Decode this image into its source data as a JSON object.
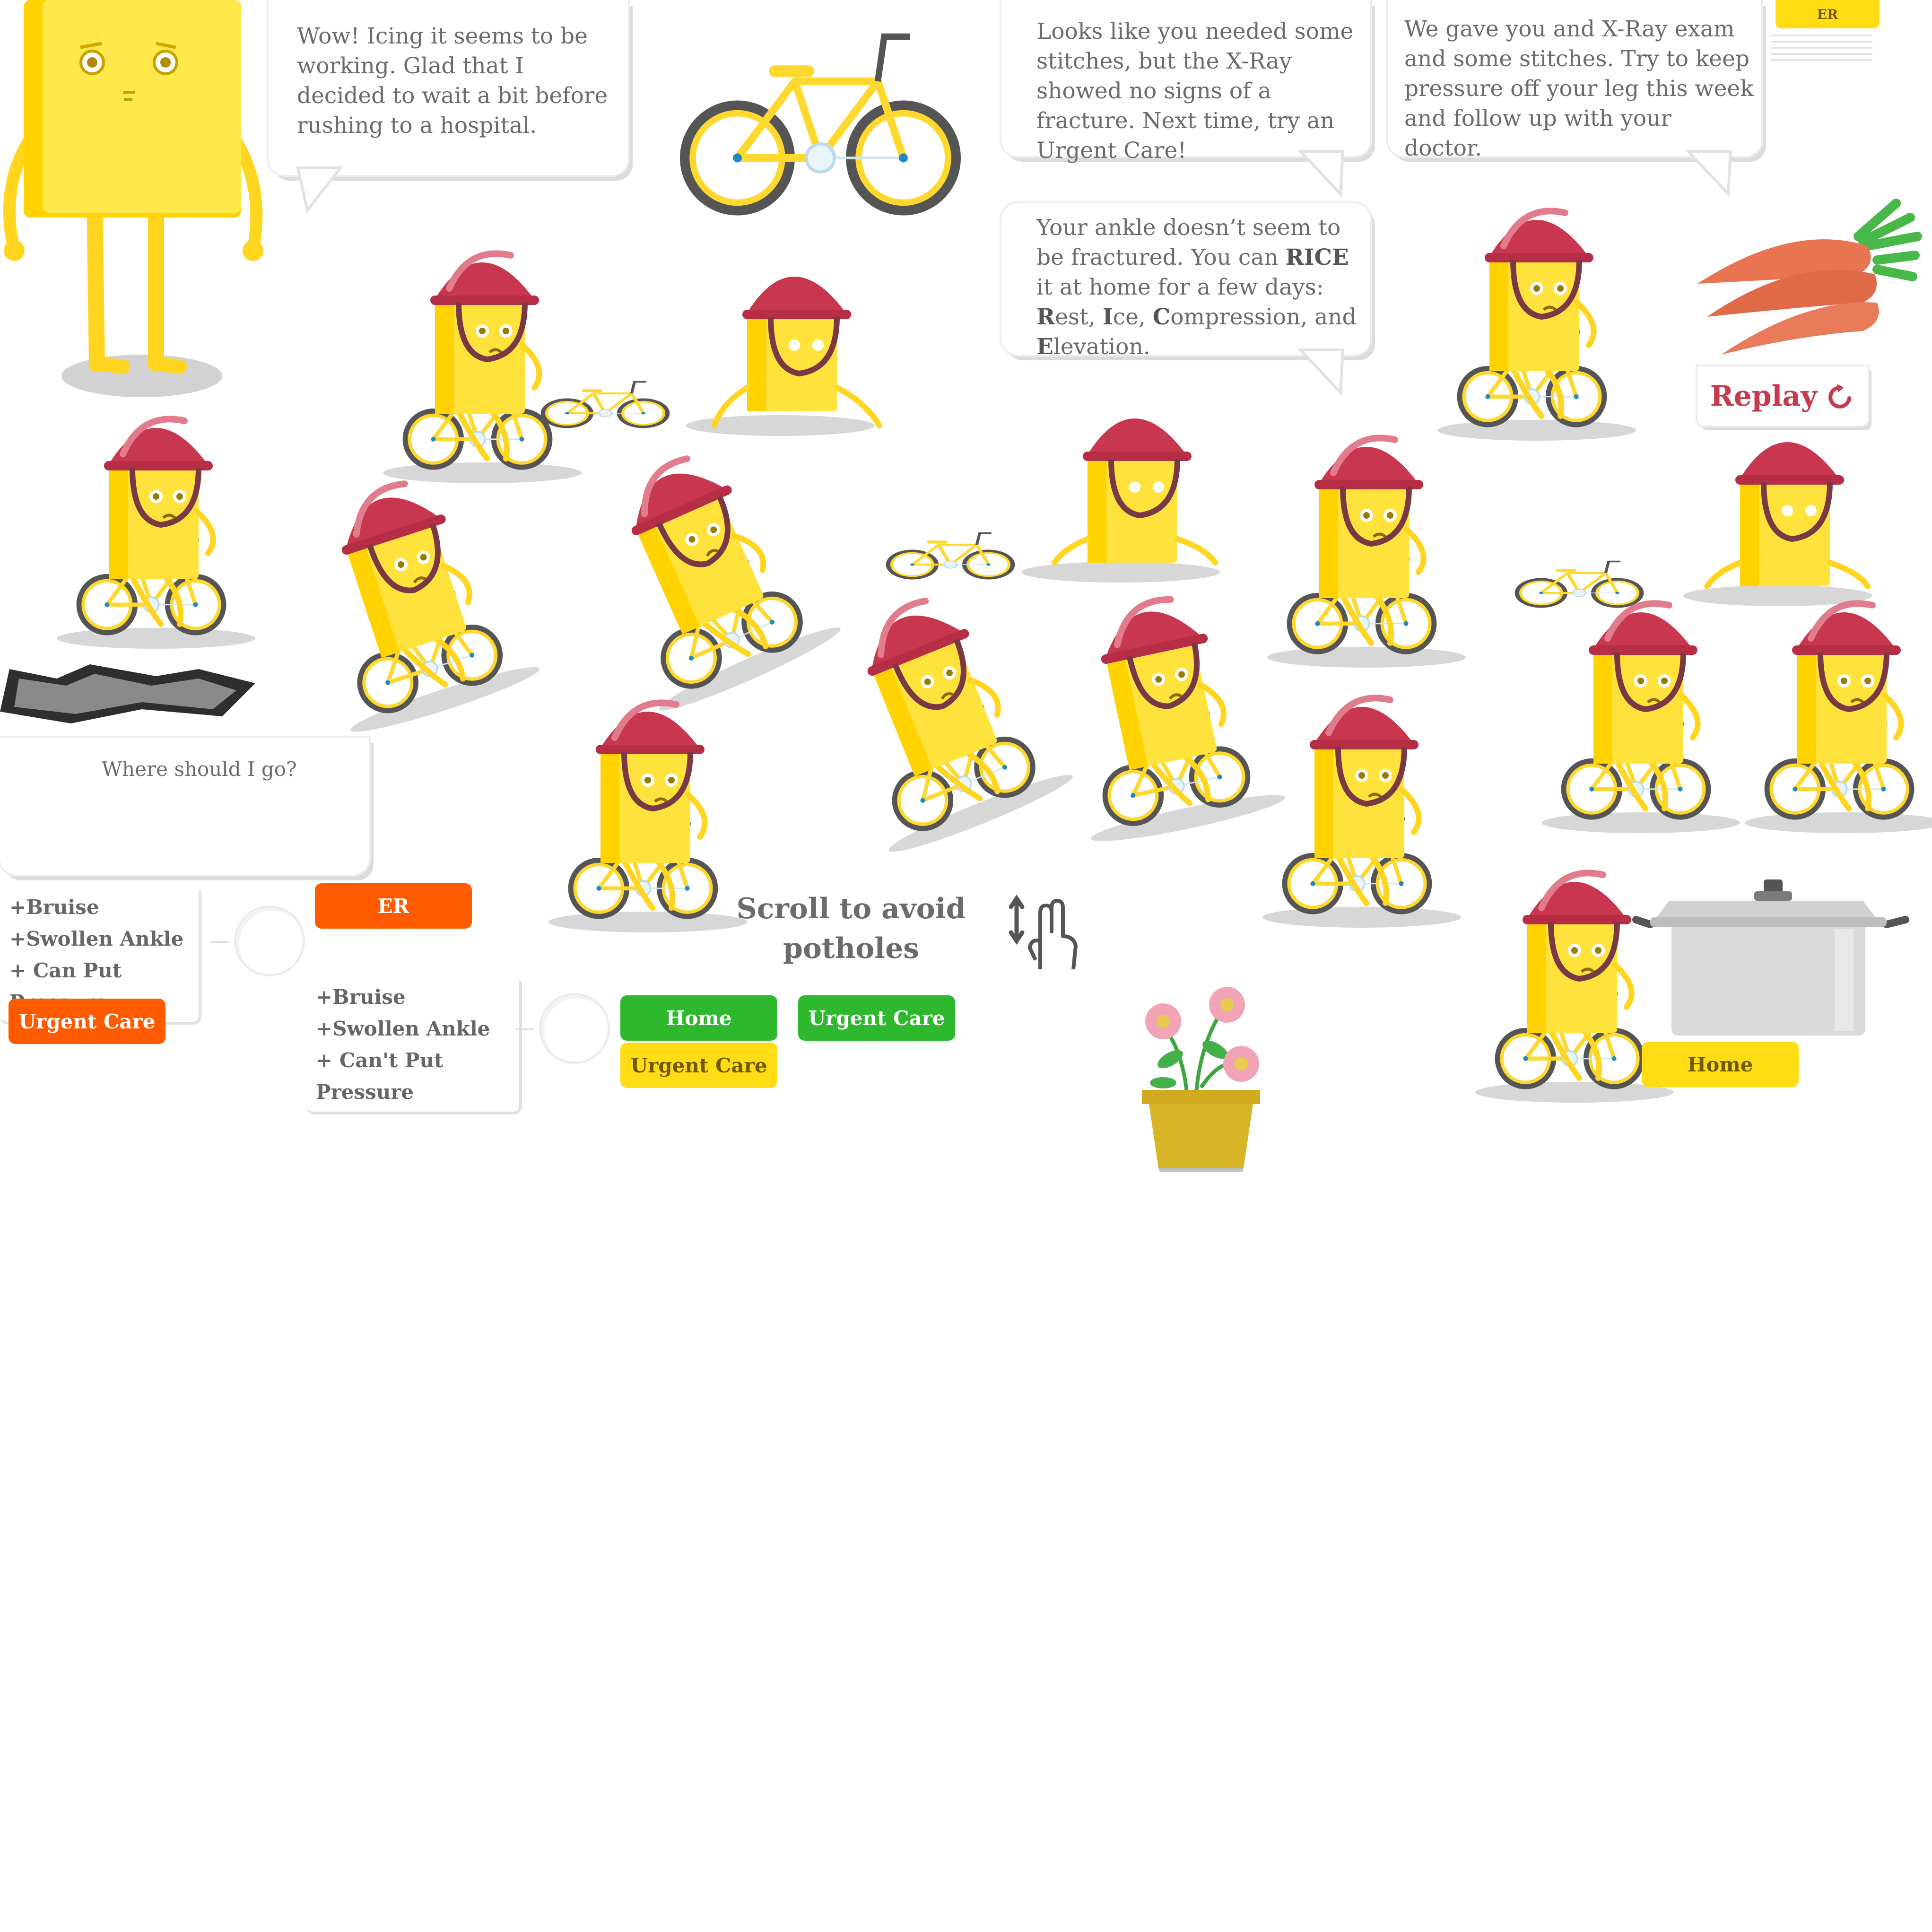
{
  "bubbles": {
    "icing": "Wow! Icing it seems to be working. Glad that I decided to wait a bit before rushing to a hospital.",
    "stitches_er": "Looks like you needed some stitches, but the X-Ray showed no signs of a fracture. Next time, try an Urgent Care!",
    "xray": "We gave you and X-Ray exam and some stitches. Try to keep pressure off your leg this week and follow up with your doctor.",
    "rice_1": "Your ankle doesn’t seem to be fractured. You can ",
    "rice_bold": "RICE",
    "rice_2": " it at home for a few days: ",
    "rice_R": "R",
    "rice_est": "est, ",
    "rice_I": "I",
    "rice_ce": "ce, ",
    "rice_C": "C",
    "rice_ompression": "ompression, and ",
    "rice_E": "E",
    "rice_levation": "levation.",
    "where": "Where should I go?"
  },
  "symptoms_a": [
    "+Bruise",
    "+Swollen Ankle",
    "+ Can Put Pressure"
  ],
  "symptoms_b": [
    "+Bruise",
    "+Swollen Ankle",
    "+ Can't Put Pressure"
  ],
  "buttons": {
    "er": "ER",
    "urgent_care_orange": "Urgent Care",
    "home_green": "Home",
    "urgent_care_green": "Urgent Care",
    "urgent_care_yellow": "Urgent Care",
    "home_yellow": "Home",
    "er_small": "ER",
    "replay": "Replay"
  },
  "instructions": {
    "scroll_line1": "Scroll to avoid",
    "scroll_line2": "potholes"
  },
  "colors": {
    "character_yellow": "#ffe23c",
    "helmet_red": "#c8374f",
    "orange": "#ff5a00",
    "green": "#2eb82e",
    "yellow_button": "#ffdc14",
    "replay_red": "#c63a4f",
    "text_gray": "#6b6b6b"
  },
  "icons": [
    "scroll-hand-icon",
    "replay-arrow-icon",
    "bicycle",
    "carrots",
    "flower-pot",
    "cooking-pot",
    "pothole"
  ]
}
